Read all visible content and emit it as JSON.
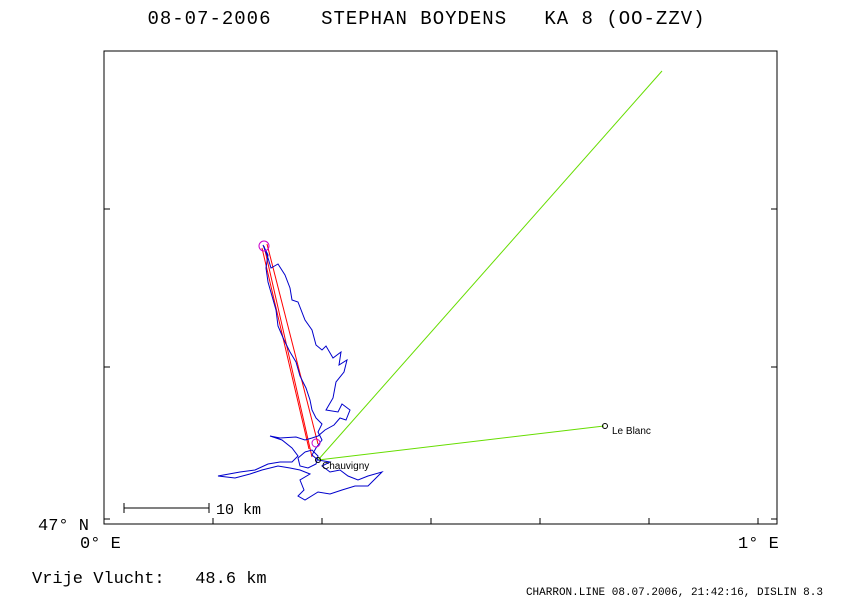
{
  "header": {
    "title": "08-07-2006    STEPHAN BOYDENS   KA 8 (OO-ZZV)"
  },
  "axes": {
    "lat_label": "47° N",
    "lon_left_label": "0° E",
    "lon_right_label": "1° E"
  },
  "scale_bar": {
    "label": "10 km"
  },
  "places": [
    {
      "name": "Chauvigny"
    },
    {
      "name": "Le Blanc"
    }
  ],
  "stats": {
    "free_flight": "Vrije Vlucht:   48.6 km"
  },
  "footer": {
    "text": "CHARRON.LINE 08.07.2006, 21:42:16, DISLIN 8.3"
  },
  "colors": {
    "track": "#0000cc",
    "task": "#ff0000",
    "line": "#66dd00",
    "turnpoint": "#cc00cc"
  }
}
